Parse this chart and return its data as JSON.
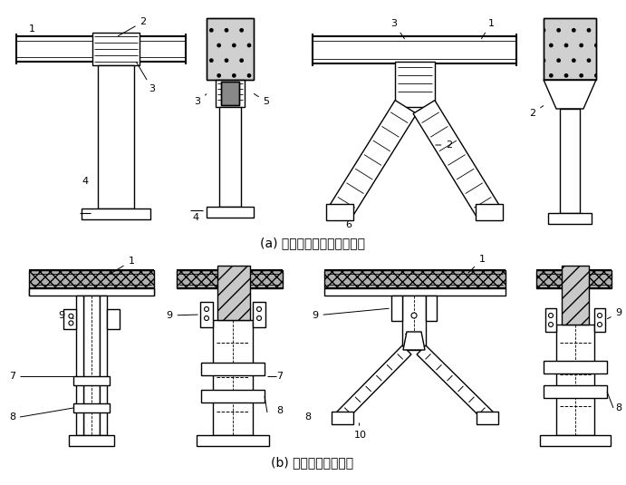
{
  "title_a": "(a) 钢筋混凝土套箍湿式连接",
  "title_b": "(b) 型钢套箍干式连接",
  "bg_color": "#ffffff",
  "font_size_title": 10,
  "font_size_label": 8
}
